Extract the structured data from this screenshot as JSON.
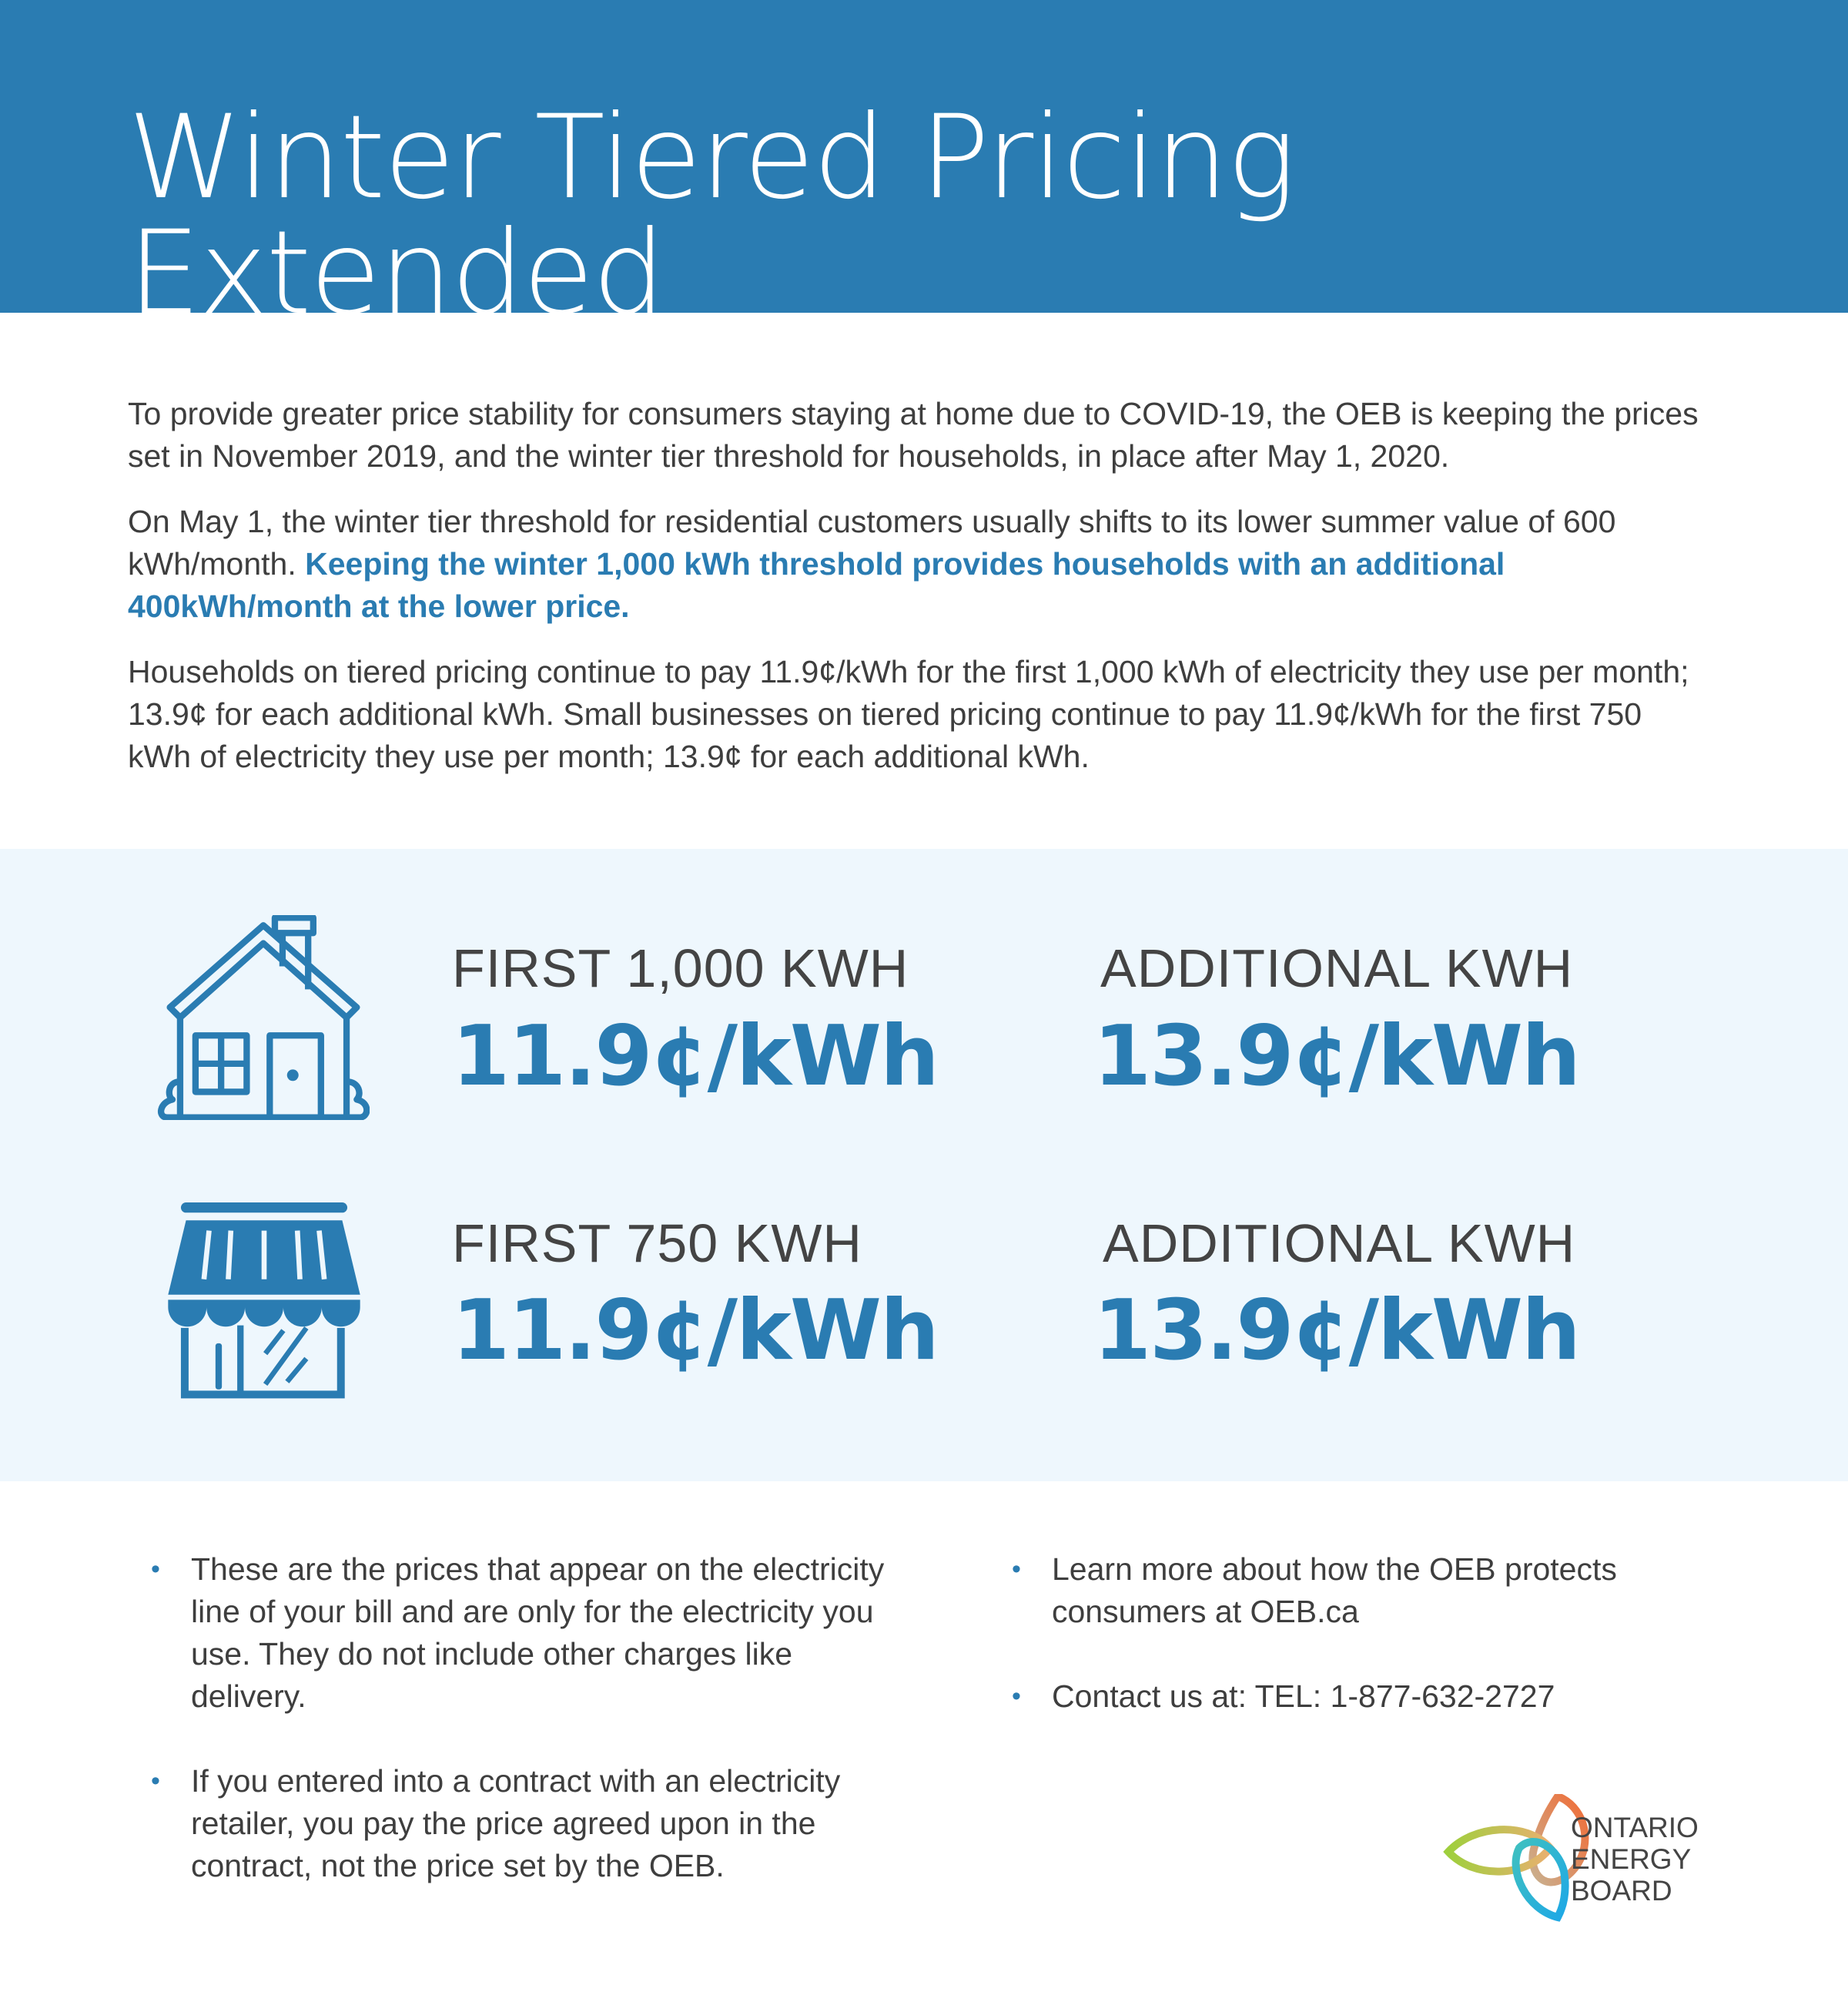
{
  "header": {
    "title": "Winter Tiered Pricing Extended",
    "bg_color": "#2a7cb2"
  },
  "intro": {
    "p1": "To provide greater price stability for consumers staying at home due to COVID-19, the OEB is keeping the prices set in November 2019, and the winter tier threshold for households, in place after May 1, 2020.",
    "p2_plain": "On May 1, the winter tier threshold for residential customers usually shifts to its lower summer value of 600 kWh/month. ",
    "p2_highlight": "Keeping the winter 1,000 kWh threshold provides households with an additional 400kWh/month at the lower price.",
    "p3": "Households on tiered pricing continue to pay 11.9¢/kWh for the first 1,000 kWh of electricity they use per month; 13.9¢ for each additional kWh. Small businesses on tiered pricing continue to pay 11.9¢/kWh for the first 750 kWh of electricity they use per month; 13.9¢ for each additional kWh."
  },
  "pricing": {
    "household": {
      "icon": "house-icon",
      "tier1_label": "FIRST 1,000 KWH",
      "tier1_price": "11.9¢/kWh",
      "tier2_label": "ADDITIONAL KWH",
      "tier2_price": "13.9¢/kWh"
    },
    "business": {
      "icon": "storefront-icon",
      "tier1_label": "FIRST 750 KWH",
      "tier1_price": "11.9¢/kWh",
      "tier2_label": "ADDITIONAL KWH",
      "tier2_price": "13.9¢/kWh"
    }
  },
  "notes": {
    "left": [
      "These are the prices that appear on the electricity line of your bill and are only for the electricity you use. They do not include other charges like delivery.",
      "If you entered into a contract with an electricity retailer, you pay the price agreed upon in the contract, not the price set by the OEB."
    ],
    "right": [
      "Learn more about how the OEB protects consumers at OEB.ca",
      "Contact us at: TEL: 1-877-632-2727"
    ],
    "bullet": "•"
  },
  "logo": {
    "line1": "ONTARIO",
    "line2": "ENERGY",
    "line3": "BOARD"
  }
}
